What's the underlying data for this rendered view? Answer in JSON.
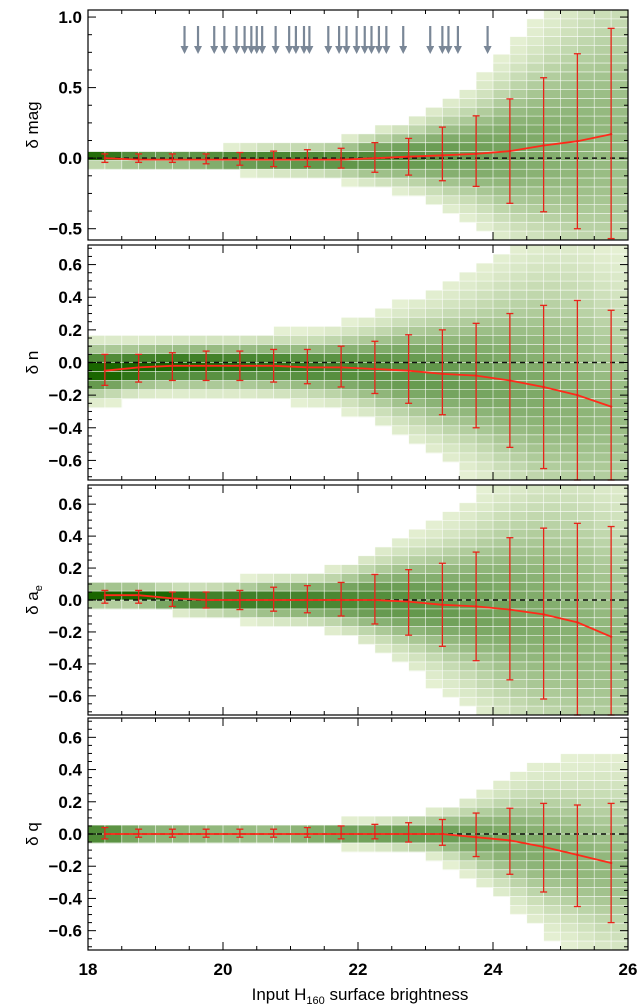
{
  "chart_data": {
    "type": "line",
    "xlabel_main": "Input H",
    "xlabel_sub": "160",
    "xlabel_rest": " surface brightness",
    "xlim": [
      18,
      26
    ],
    "x_ticks": [
      "18",
      "20",
      "22",
      "24",
      "26"
    ],
    "colors": {
      "median_line": "#ff2a1a",
      "error_bar": "#e8241a",
      "zero_line": "#111111",
      "arrow": "#7a8797",
      "density_dark": "#1a6600",
      "density_light": "#eef6dc"
    },
    "arrows_x": [
      19.43,
      19.63,
      19.87,
      20.02,
      20.2,
      20.32,
      20.42,
      20.5,
      20.58,
      20.78,
      20.98,
      21.08,
      21.2,
      21.28,
      21.56,
      21.72,
      21.83,
      21.98,
      22.1,
      22.2,
      22.31,
      22.42,
      22.67,
      23.07,
      23.25,
      23.34,
      23.48,
      23.92
    ],
    "panels": [
      {
        "ylabel": "δ mag",
        "ylim": [
          -0.58,
          1.05
        ],
        "y_ticks": [
          "1.0",
          "0.5",
          "0.0",
          "−0.5"
        ],
        "y_tick_values": [
          1.0,
          0.5,
          0.0,
          -0.5
        ],
        "series": [
          {
            "x": [
              18.25,
              18.75,
              19.25,
              19.75,
              20.25,
              20.75,
              21.25,
              21.75,
              22.25,
              22.75,
              23.25,
              23.75,
              24.25,
              24.75,
              25.25,
              25.75
            ],
            "y": [
              0.0,
              -0.01,
              -0.01,
              -0.01,
              -0.01,
              -0.01,
              -0.01,
              -0.01,
              0.0,
              0.01,
              0.02,
              0.03,
              0.05,
              0.09,
              0.12,
              0.17
            ],
            "err_low": [
              -0.03,
              -0.03,
              -0.03,
              -0.04,
              -0.05,
              -0.06,
              -0.06,
              -0.07,
              -0.1,
              -0.12,
              -0.16,
              -0.2,
              -0.32,
              -0.38,
              -0.5,
              -0.57
            ],
            "err_high": [
              0.03,
              0.03,
              0.03,
              0.03,
              0.04,
              0.05,
              0.06,
              0.07,
              0.11,
              0.14,
              0.22,
              0.3,
              0.42,
              0.57,
              0.74,
              0.92
            ]
          }
        ]
      },
      {
        "ylabel": "δ n",
        "ylim": [
          -0.72,
          0.72
        ],
        "y_ticks": [
          "0.6",
          "0.4",
          "0.2",
          "0.0",
          "−0.2",
          "−0.4",
          "−0.6"
        ],
        "y_tick_values": [
          0.6,
          0.4,
          0.2,
          0.0,
          -0.2,
          -0.4,
          -0.6
        ],
        "series": [
          {
            "x": [
              18.25,
              18.75,
              19.25,
              19.75,
              20.25,
              20.75,
              21.25,
              21.75,
              22.25,
              22.75,
              23.25,
              23.75,
              24.25,
              24.75,
              25.25,
              25.75
            ],
            "y": [
              -0.05,
              -0.03,
              -0.02,
              -0.02,
              -0.02,
              -0.02,
              -0.03,
              -0.03,
              -0.04,
              -0.05,
              -0.07,
              -0.08,
              -0.11,
              -0.15,
              -0.2,
              -0.27
            ],
            "err_low": [
              -0.14,
              -0.12,
              -0.11,
              -0.11,
              -0.11,
              -0.12,
              -0.13,
              -0.15,
              -0.19,
              -0.25,
              -0.32,
              -0.4,
              -0.52,
              -0.65,
              -0.72,
              -0.72
            ],
            "err_high": [
              0.05,
              0.05,
              0.06,
              0.07,
              0.07,
              0.08,
              0.08,
              0.1,
              0.13,
              0.17,
              0.2,
              0.24,
              0.3,
              0.35,
              0.38,
              0.32
            ]
          }
        ]
      },
      {
        "ylabel": "δ a",
        "ylabel_sub": "e",
        "ylim": [
          -0.72,
          0.72
        ],
        "y_ticks": [
          "0.6",
          "0.4",
          "0.2",
          "0.0",
          "−0.2",
          "−0.4",
          "−0.6"
        ],
        "y_tick_values": [
          0.6,
          0.4,
          0.2,
          0.0,
          -0.2,
          -0.4,
          -0.6
        ],
        "series": [
          {
            "x": [
              18.25,
              18.75,
              19.25,
              19.75,
              20.25,
              20.75,
              21.25,
              21.75,
              22.25,
              22.75,
              23.25,
              23.75,
              24.25,
              24.75,
              25.25,
              25.75
            ],
            "y": [
              0.03,
              0.03,
              0.01,
              0.0,
              0.0,
              0.0,
              0.0,
              0.0,
              0.0,
              -0.01,
              -0.03,
              -0.04,
              -0.06,
              -0.09,
              -0.14,
              -0.23
            ],
            "err_low": [
              -0.02,
              -0.02,
              -0.04,
              -0.05,
              -0.06,
              -0.07,
              -0.08,
              -0.1,
              -0.15,
              -0.22,
              -0.29,
              -0.38,
              -0.5,
              -0.62,
              -0.72,
              -0.72
            ],
            "err_high": [
              0.06,
              0.06,
              0.05,
              0.05,
              0.06,
              0.08,
              0.09,
              0.11,
              0.16,
              0.19,
              0.23,
              0.3,
              0.39,
              0.45,
              0.48,
              0.46
            ]
          }
        ]
      },
      {
        "ylabel": "δ q",
        "ylim": [
          -0.72,
          0.72
        ],
        "y_ticks": [
          "0.6",
          "0.4",
          "0.2",
          "0.0",
          "−0.2",
          "−0.4",
          "−0.6"
        ],
        "y_tick_values": [
          0.6,
          0.4,
          0.2,
          0.0,
          -0.2,
          -0.4,
          -0.6
        ],
        "series": [
          {
            "x": [
              18.25,
              18.75,
              19.25,
              19.75,
              20.25,
              20.75,
              21.25,
              21.75,
              22.25,
              22.75,
              23.25,
              23.75,
              24.25,
              24.75,
              25.25,
              25.75
            ],
            "y": [
              0.0,
              0.0,
              0.0,
              0.0,
              0.0,
              0.0,
              0.0,
              0.0,
              0.0,
              0.0,
              0.0,
              -0.02,
              -0.04,
              -0.08,
              -0.13,
              -0.18
            ],
            "err_low": [
              -0.03,
              -0.02,
              -0.02,
              -0.02,
              -0.02,
              -0.02,
              -0.02,
              -0.03,
              -0.03,
              -0.05,
              -0.07,
              -0.14,
              -0.25,
              -0.36,
              -0.45,
              -0.55
            ],
            "err_high": [
              0.04,
              0.03,
              0.03,
              0.03,
              0.03,
              0.03,
              0.04,
              0.05,
              0.06,
              0.07,
              0.09,
              0.13,
              0.16,
              0.19,
              0.18,
              0.19
            ]
          }
        ]
      }
    ]
  }
}
